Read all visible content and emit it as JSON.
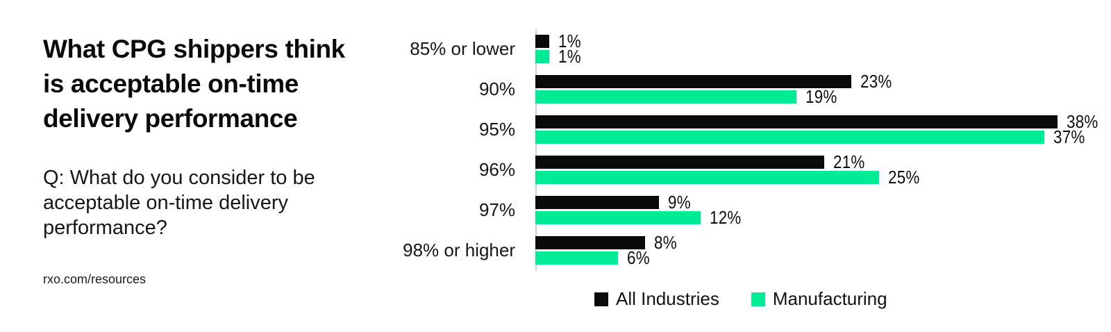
{
  "left_panel": {
    "title_lines": [
      "What CPG shippers think",
      "is acceptable on-time",
      "delivery performance"
    ],
    "question_lines": [
      "Q: What do you consider to be",
      "acceptable on-time delivery",
      "performance?"
    ],
    "source": "rxo.com/resources"
  },
  "chart_data": {
    "type": "bar",
    "orientation": "horizontal",
    "title": "What CPG shippers think is acceptable on-time delivery performance",
    "categories": [
      "85% or lower",
      "90%",
      "95%",
      "96%",
      "97%",
      "98% or higher"
    ],
    "series": [
      {
        "name": "All Industries",
        "color": "#0a0a0a",
        "values": [
          1,
          23,
          38,
          21,
          9,
          8
        ]
      },
      {
        "name": "Manufacturing",
        "color": "#00eb96",
        "values": [
          1,
          19,
          37,
          25,
          12,
          6
        ]
      }
    ],
    "value_suffix": "%",
    "xlim": [
      0,
      38
    ],
    "grid": false,
    "legend_position": "bottom",
    "axis_line_color": "#cfcfcf"
  }
}
